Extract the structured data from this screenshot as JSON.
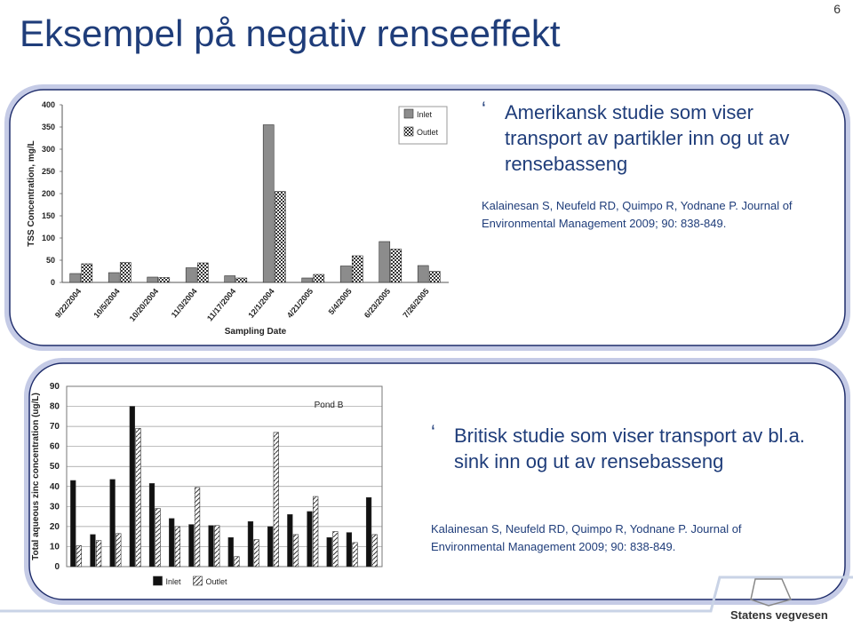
{
  "slide": {
    "title": "Eksempel på negativ renseeffekt",
    "page_number": "6",
    "bullets": [
      {
        "text": "Amerikansk studie som viser transport av partikler inn og ut av rensebasseng",
        "reference": "Kalainesan S, Neufeld RD, Quimpo R, Yodnane P. Journal of Environmental Management 2009; 90: 838-849."
      },
      {
        "text": "Britisk studie som viser transport av bl.a. sink inn og ut av rensebasseng",
        "reference": "Kalainesan S, Neufeld RD, Quimpo R, Yodnane P. Journal of Environmental Management 2009; 90: 838-849."
      }
    ],
    "footer": "Statens vegvesen"
  },
  "chart_data": [
    {
      "type": "bar",
      "x_label": "Sampling Date",
      "y_label": "TSS Concentration, mg/L",
      "categories": [
        "9/22/2004",
        "10/5/2004",
        "10/20/2004",
        "11/3/2004",
        "11/17/2004",
        "12/1/2004",
        "4/21/2005",
        "5/4/2005",
        "6/23/2005",
        "7/26/2005"
      ],
      "series": [
        {
          "name": "Inlet",
          "color": "#8c8c8c",
          "pattern": "solid",
          "values": [
            20,
            22,
            12,
            33,
            15,
            355,
            10,
            37,
            92,
            38
          ]
        },
        {
          "name": "Outlet",
          "color": "#444444",
          "pattern": "checker",
          "values": [
            42,
            45,
            11,
            44,
            10,
            205,
            18,
            60,
            75,
            25
          ]
        }
      ],
      "ylim": [
        0,
        400
      ],
      "yticks": [
        0,
        50,
        100,
        150,
        200,
        250,
        300,
        350,
        400
      ],
      "grid": false,
      "legend": "top-right"
    },
    {
      "type": "bar",
      "y_label": "Total aqueous zinc concentration (ug/L)",
      "annotation": "Pond B",
      "categories": [
        null,
        null,
        null,
        null,
        null,
        null,
        null,
        null,
        null,
        null,
        null,
        null,
        null,
        null,
        null,
        null
      ],
      "series": [
        {
          "name": "Inlet",
          "color": "#111111",
          "pattern": "solid",
          "values": [
            43,
            16,
            43.5,
            80,
            41.5,
            24,
            21,
            20.5,
            14.5,
            22.5,
            20,
            26,
            27.5,
            14.5,
            17,
            34.5
          ]
        },
        {
          "name": "Outlet",
          "color": "#333333",
          "pattern": "hatch",
          "values": [
            10.5,
            13,
            16.5,
            69,
            29,
            20,
            39.5,
            20.5,
            5,
            13.5,
            67,
            16,
            35,
            17.5,
            12,
            16
          ]
        }
      ],
      "ylim": [
        0,
        90
      ],
      "yticks": [
        0,
        10,
        20,
        30,
        40,
        50,
        60,
        70,
        80,
        90
      ],
      "grid": true,
      "legend": "bottom"
    }
  ]
}
